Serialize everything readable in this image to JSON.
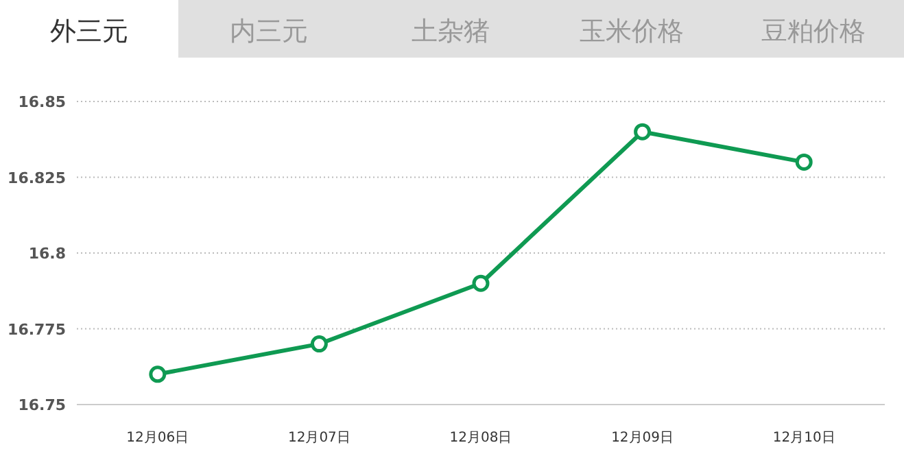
{
  "chart_data": {
    "type": "line",
    "title": "外三元",
    "annotations": [
      "内三元",
      "土杂猪",
      "玉米价格",
      "豆粕价格"
    ],
    "categories": [
      "12月06日",
      "12月07日",
      "12月08日",
      "12月09日",
      "12月10日"
    ],
    "series": [
      {
        "color": "#0f9a52",
        "values": [
          16.76,
          16.77,
          16.79,
          16.84,
          16.83
        ]
      }
    ],
    "ylim": [
      16.75,
      16.85
    ],
    "yticks": [
      16.75,
      16.775,
      16.8,
      16.825,
      16.85
    ],
    "grid": "y",
    "marker": "circle",
    "line_style": "solid"
  }
}
